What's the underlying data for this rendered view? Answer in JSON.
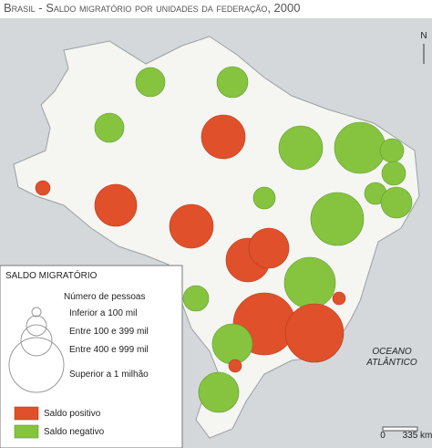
{
  "header": {
    "title": "Brasil - Saldo migratório por unidades da federação, 2000"
  },
  "north": "N",
  "ocean": {
    "line1": "OCEANO",
    "line2": "ATLÂNTICO"
  },
  "scale": {
    "start": "0",
    "end": "335 km"
  },
  "legend": {
    "title": "SALDO MIGRATÓRIO",
    "subtitle": "Número de pessoas",
    "sizes": [
      "Inferior a 100 mil",
      "Entre 100 e 399 mil",
      "Entre 400 e 999 mil",
      "Superior a 1 milhão"
    ],
    "colors": [
      "Saldo positivo",
      "Saldo negativo"
    ]
  }
}
